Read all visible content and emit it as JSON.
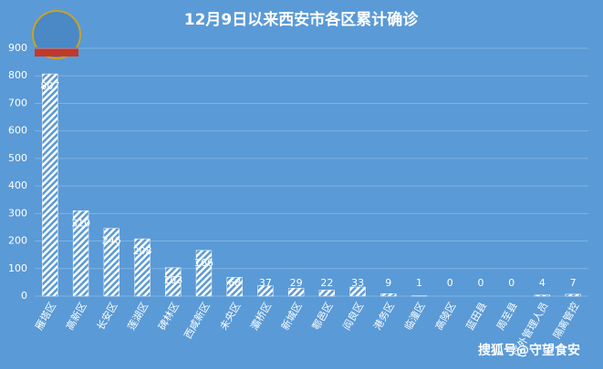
{
  "chart_data": {
    "type": "bar",
    "title": "12月9日以来西安市各区累计确诊",
    "categories": [
      "雁塔区",
      "高新区",
      "长安区",
      "莲湖区",
      "碑林区",
      "西咸新区",
      "未央区",
      "灞桥区",
      "新城区",
      "鄠邑区",
      "阎良区",
      "港务区",
      "临潼区",
      "高陵区",
      "蓝田县",
      "周至县",
      "区外管理人员",
      "隔离管控"
    ],
    "values": [
      807,
      310,
      246,
      208,
      103,
      166,
      68,
      37,
      29,
      22,
      33,
      9,
      1,
      0,
      0,
      0,
      4,
      7
    ],
    "color": "#ffffff",
    "ylim": [
      0,
      900
    ],
    "yticks": [
      0,
      100,
      200,
      300,
      400,
      500,
      600,
      700,
      800,
      900
    ],
    "grid": true,
    "watermark": "搜狐号@守望食安"
  }
}
